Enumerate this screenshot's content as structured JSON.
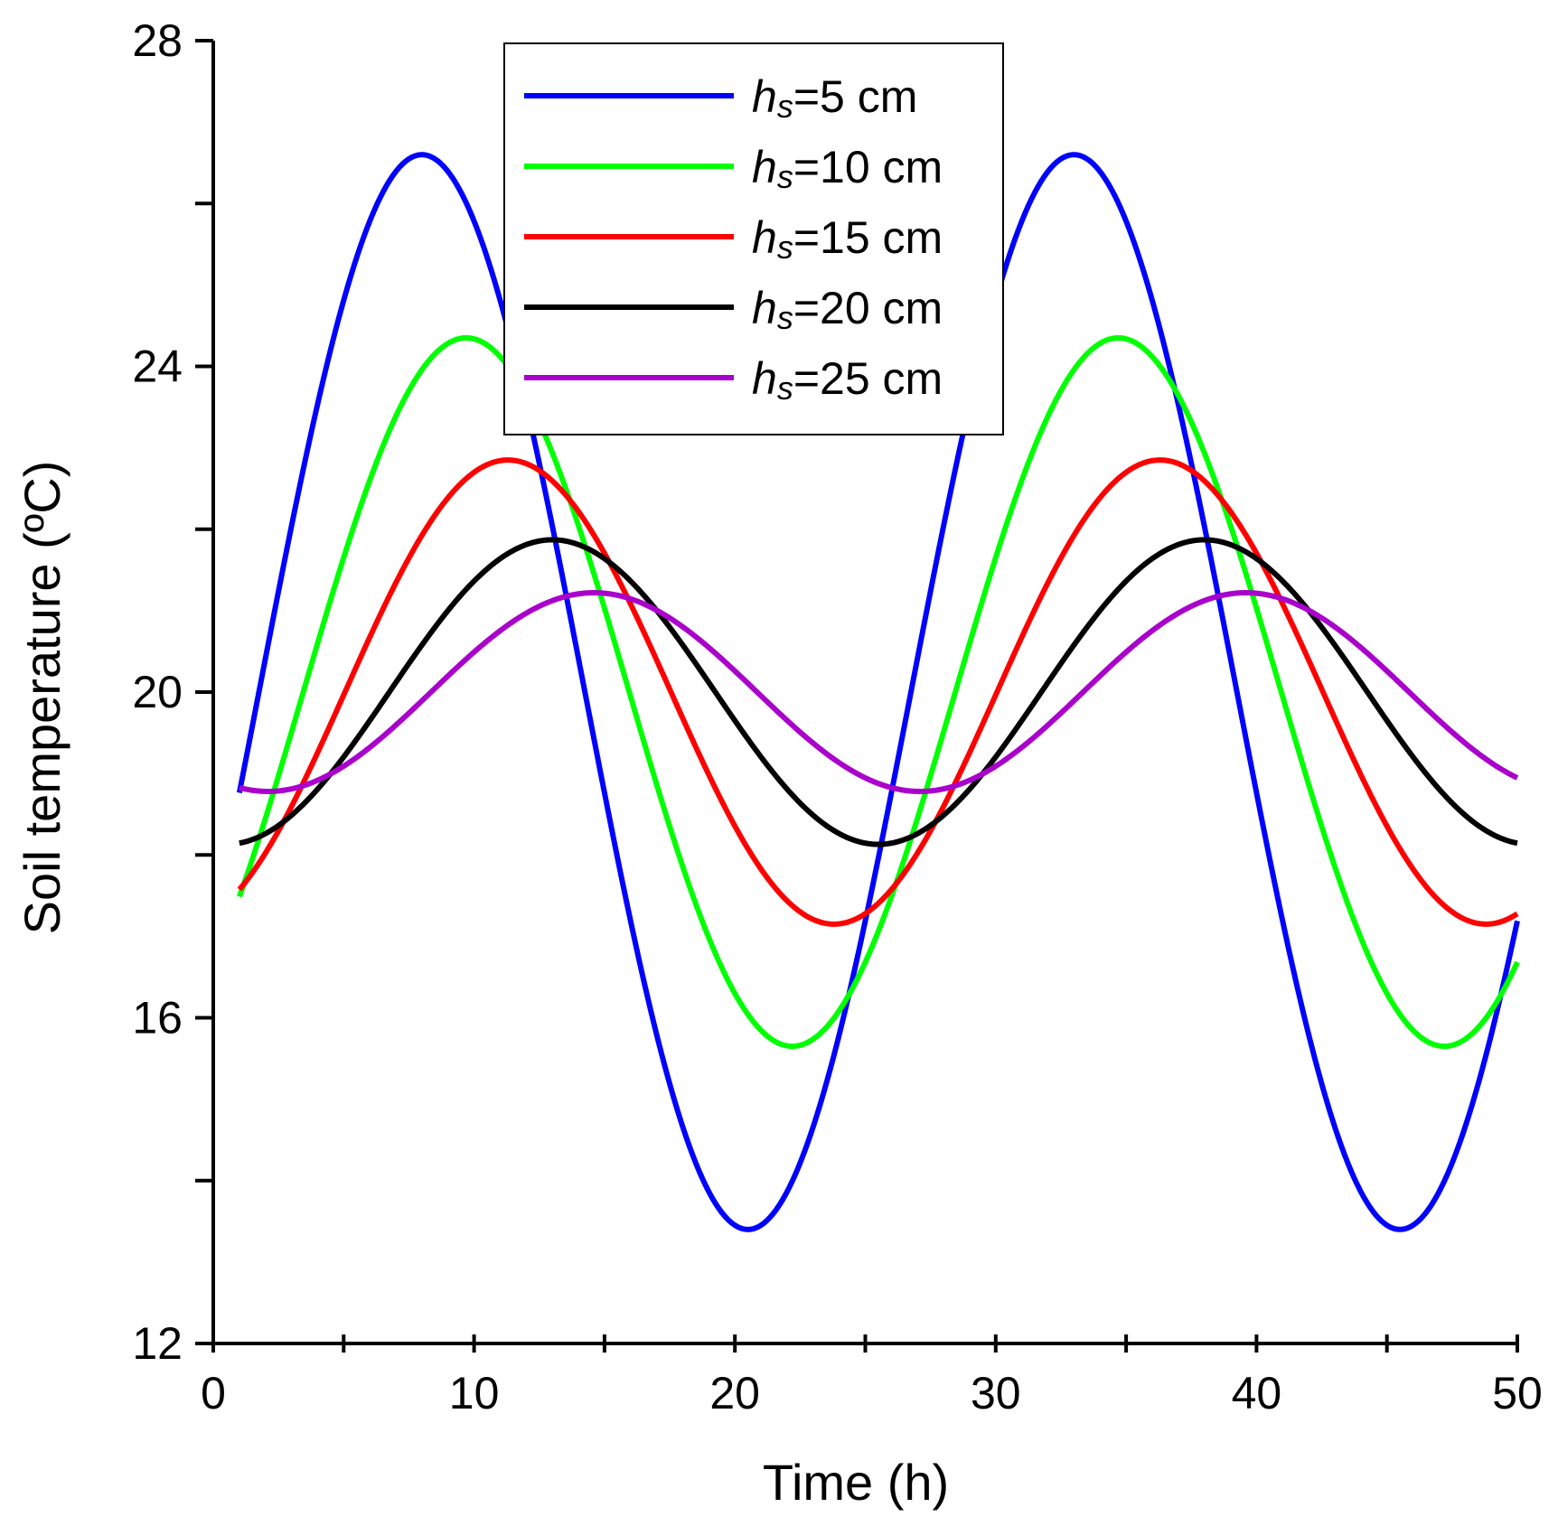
{
  "chart_data": {
    "type": "line",
    "title": "",
    "xlabel": "Time (h)",
    "ylabel": "Soil temperature (ºC)",
    "xlim": [
      0,
      50
    ],
    "ylim": [
      12,
      28
    ],
    "xticks": [
      0,
      10,
      20,
      30,
      40,
      50
    ],
    "yticks": [
      12,
      16,
      20,
      24,
      28
    ],
    "xtick_labels": [
      "0",
      "10",
      "20",
      "30",
      "40",
      "50"
    ],
    "ytick_labels": [
      "12",
      "16",
      "20",
      "24",
      "28"
    ],
    "x_minor_step": 5,
    "y_minor_step": 2,
    "period_h": 25,
    "x_start": 1,
    "x_end": 50,
    "legend_position": "top-center",
    "series": [
      {
        "name": "hs=5 cm",
        "label_italic": "h",
        "label_sub": "s",
        "label_rest": "=5 cm",
        "color": "#0000ff",
        "mean": 20.0,
        "amplitude": 6.6,
        "peak_time_h": 8.0
      },
      {
        "name": "hs=10 cm",
        "label_italic": "h",
        "label_sub": "s",
        "label_rest": "=10 cm",
        "color": "#00ff00",
        "mean": 20.0,
        "amplitude": 4.35,
        "peak_time_h": 9.7
      },
      {
        "name": "hs=15 cm",
        "label_italic": "h",
        "label_sub": "s",
        "label_rest": "=15 cm",
        "color": "#ff0000",
        "mean": 20.0,
        "amplitude": 2.85,
        "peak_time_h": 11.3
      },
      {
        "name": "hs=20 cm",
        "label_italic": "h",
        "label_sub": "s",
        "label_rest": "=20 cm",
        "color": "#000000",
        "mean": 20.0,
        "amplitude": 1.87,
        "peak_time_h": 13.0
      },
      {
        "name": "hs=25 cm",
        "label_italic": "h",
        "label_sub": "s",
        "label_rest": "=25 cm",
        "color": "#aa00cc",
        "mean": 20.0,
        "amplitude": 1.22,
        "peak_time_h": 14.6
      }
    ]
  }
}
